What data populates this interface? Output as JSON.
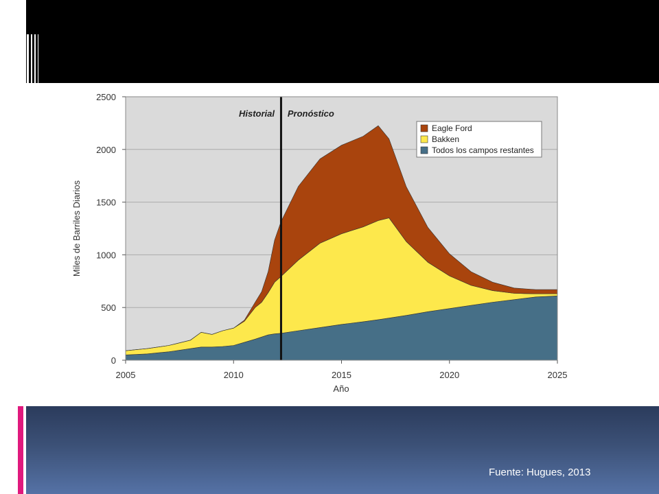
{
  "slide": {
    "source": "Fuente: Hugues, 2013",
    "colors": {
      "top_band": "#000000",
      "accent_pink": "#e0197d",
      "bottom_band": "#3c5177"
    }
  },
  "chart_data": {
    "type": "area",
    "stacked": true,
    "xlabel": "Año",
    "ylabel": "Miles de Barriles Diarios",
    "xlim": [
      2005,
      2025
    ],
    "ylim": [
      0,
      2500
    ],
    "xticks": [
      2005,
      2010,
      2015,
      2020,
      2025
    ],
    "yticks": [
      0,
      500,
      1000,
      1500,
      2000,
      2500
    ],
    "grid": true,
    "legend_position": "top-right",
    "annotations": [
      {
        "text": "Historial",
        "x": 2011.9,
        "side": "left"
      },
      {
        "text": "Pronóstico",
        "x": 2012.5,
        "side": "right"
      }
    ],
    "divider_x": 2012.2,
    "x": [
      2005,
      2005.5,
      2006,
      2006.5,
      2007,
      2007.5,
      2008,
      2008.5,
      2009,
      2009.5,
      2010,
      2010.5,
      2011,
      2011.3,
      2011.6,
      2011.9,
      2012.2,
      2013,
      2014,
      2015,
      2016,
      2016.7,
      2017.2,
      2018,
      2019,
      2020,
      2021,
      2022,
      2023,
      2024,
      2025
    ],
    "series": [
      {
        "name": "Todos los campos restantes",
        "color": "#466f87",
        "values": [
          50,
          55,
          60,
          70,
          80,
          95,
          110,
          125,
          125,
          130,
          140,
          170,
          200,
          220,
          240,
          250,
          255,
          280,
          310,
          340,
          365,
          385,
          400,
          425,
          460,
          490,
          520,
          550,
          575,
          600,
          610
        ]
      },
      {
        "name": "Bakken",
        "color": "#fde84c",
        "values": [
          40,
          45,
          50,
          55,
          60,
          70,
          80,
          140,
          120,
          150,
          165,
          200,
          300,
          330,
          400,
          490,
          540,
          670,
          800,
          860,
          900,
          940,
          950,
          700,
          470,
          310,
          190,
          110,
          60,
          30,
          20
        ]
      },
      {
        "name": "Eagle Ford",
        "color": "#a9440d",
        "values": [
          0,
          0,
          0,
          0,
          0,
          0,
          0,
          0,
          0,
          0,
          0,
          10,
          50,
          100,
          200,
          400,
          520,
          700,
          800,
          840,
          860,
          900,
          750,
          520,
          330,
          210,
          130,
          80,
          50,
          40,
          40
        ]
      }
    ]
  }
}
